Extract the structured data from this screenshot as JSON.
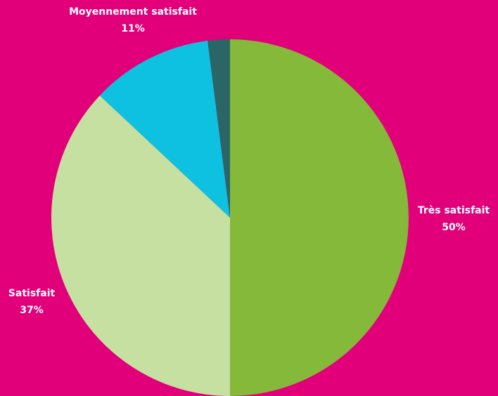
{
  "chart_data": {
    "type": "pie",
    "categories": [
      "Très satisfait",
      "Satisfait",
      "Moyennement satisfait",
      null
    ],
    "values": [
      50,
      37,
      11,
      2
    ],
    "value_labels": [
      "50%",
      "37%",
      "11%",
      null
    ],
    "colors": [
      "#84b93a",
      "#c6e0a1",
      "#0fc1e0",
      "#2b6565"
    ]
  }
}
